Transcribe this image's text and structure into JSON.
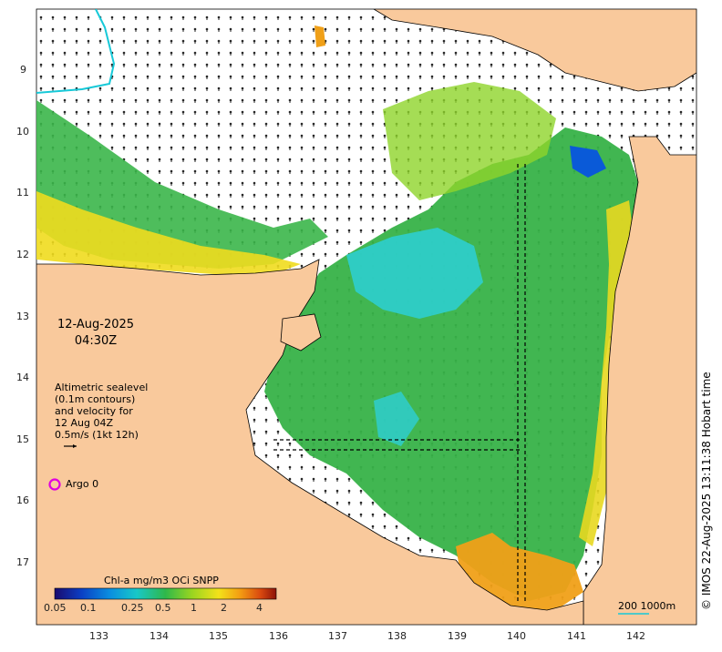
{
  "map": {
    "date": "12-Aug-2025",
    "time": "04:30Z",
    "altimetry_note": [
      "Altimetric sealevel",
      "(0.1m contours)",
      "and velocity for",
      "12 Aug 04Z",
      "0.5m/s (1kt 12h)"
    ],
    "argo_label": "Argo 0",
    "credit": "© IMOS 22-Aug-2025 13:11:38 Hobart time",
    "colorbar": {
      "title": "Chl-a mg/m3 OCi SNPP",
      "ticks": [
        "0.05",
        "0.1",
        "0.25",
        "0.5",
        "1",
        "2",
        "4"
      ],
      "colors": [
        "#1a0a6e",
        "#0b3fc4",
        "#0a8fe0",
        "#18c8c8",
        "#2fb84a",
        "#9ad520",
        "#f3e21a",
        "#f39a12",
        "#d9480f",
        "#8c1208"
      ]
    },
    "scale_bar": "200  1000m",
    "lon_ticks": [
      "133",
      "134",
      "135",
      "136",
      "137",
      "138",
      "139",
      "140",
      "141",
      "142"
    ],
    "lat_ticks": [
      "9",
      "10",
      "11",
      "12",
      "13",
      "14",
      "15",
      "16",
      "17"
    ],
    "land_color": "#f9c99c",
    "sea_color": "#ffffff",
    "argo_color": "#e000e0"
  }
}
